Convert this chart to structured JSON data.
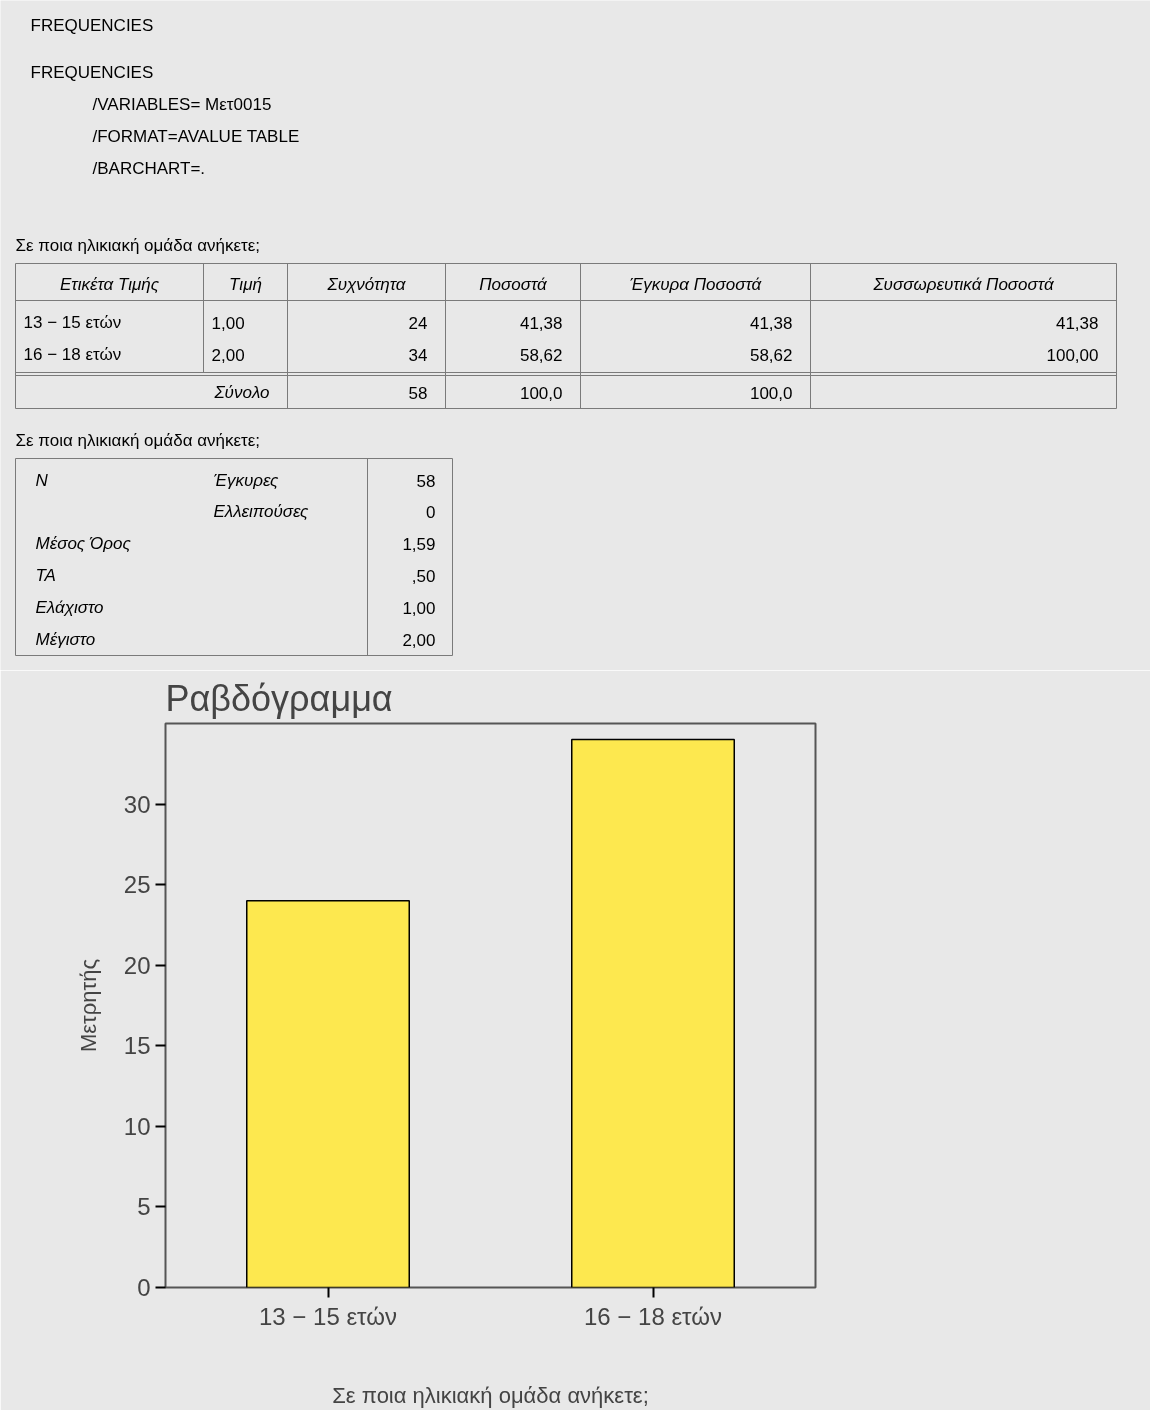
{
  "chart_data": [
    {
      "type": "other",
      "title": "FREQUENCIES",
      "annotations": [
        "FREQUENCIES",
        "/VARIABLES= Μετ0015",
        "/FORMAT=AVALUE TABLE",
        "/BARCHART=.",
        "Σε ποια ηλικιακή ομάδα ανήκετε;",
        "Ετικέτα Τιμής",
        "Τιμή",
        "Συχνότητα",
        "Ποσοστά",
        "Έγκυρα Ποσοστά",
        "Συσσωρευτικά Ποσοστά",
        "13 − 15 ετών",
        "1,00",
        "24",
        "41,38",
        "41,38",
        "41,38",
        "16 − 18 ετών",
        "2,00",
        "34",
        "58,62",
        "58,62",
        "100,00",
        "Σύνολο",
        "58",
        "100,0",
        "100,0",
        "Σε ποια ηλικιακή ομάδα ανήκετε;",
        "N",
        "Έγκυρες",
        "58",
        "Ελλειπούσες",
        "0",
        "Μέσος Όρος",
        "1,59",
        "ΤΑ",
        ",50",
        "Ελάχιστο",
        "1,00",
        "Μέγιστο",
        "2,00"
      ]
    },
    {
      "type": "bar",
      "title": "Ραβδόγραμμα",
      "xlabel": "Σε ποια ηλικιακή ομάδα ανήκετε;",
      "ylabel": "Μετρητής",
      "categories": [
        "13 − 15 ετών",
        "16 − 18 ετών"
      ],
      "values": [
        24,
        34
      ],
      "color": "#fde84f",
      "ylim": [
        0,
        35
      ],
      "yticks": [
        0,
        5,
        10,
        15,
        20,
        25,
        30
      ],
      "grid": false
    }
  ]
}
